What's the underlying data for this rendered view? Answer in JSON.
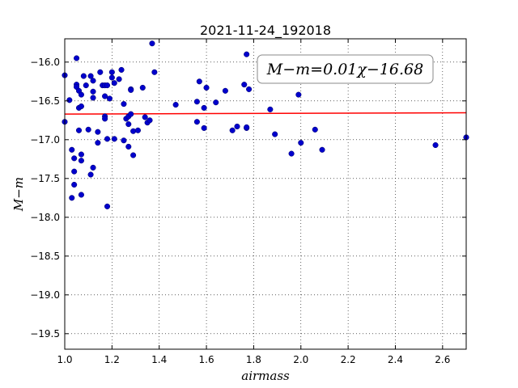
{
  "chart_data": {
    "type": "scatter",
    "title": "2021-11-24_192018",
    "xlabel": "airmass",
    "ylabel": "M−m",
    "xlim": [
      1.0,
      2.7
    ],
    "ylim": [
      -19.7,
      -15.7
    ],
    "y_inverted": true,
    "grid": true,
    "grid_style": "dotted",
    "xticks": [
      1.0,
      1.2,
      1.4,
      1.6,
      1.8,
      2.0,
      2.2,
      2.4,
      2.6
    ],
    "xtick_labels": [
      "1.0",
      "1.2",
      "1.4",
      "1.6",
      "1.8",
      "2.0",
      "2.2",
      "2.4",
      "2.6"
    ],
    "yticks": [
      -16.0,
      -16.5,
      -17.0,
      -17.5,
      -18.0,
      -18.5,
      -19.0,
      -19.5
    ],
    "ytick_labels": [
      "−16.0",
      "−16.5",
      "−17.0",
      "−17.5",
      "−18.0",
      "−18.5",
      "−19.0",
      "−19.5"
    ],
    "annotation": {
      "text": "M−m=0.01χ−16.68",
      "placement": "top-right"
    },
    "fit": {
      "slope": 0.01,
      "intercept": -16.68,
      "color": "#ff0000"
    },
    "point_color": "#0000cc",
    "points": [
      [
        1.0,
        -16.17
      ],
      [
        1.0,
        -16.77
      ],
      [
        1.02,
        -16.49
      ],
      [
        1.03,
        -17.13
      ],
      [
        1.03,
        -17.75
      ],
      [
        1.04,
        -17.24
      ],
      [
        1.04,
        -17.41
      ],
      [
        1.04,
        -17.58
      ],
      [
        1.05,
        -15.95
      ],
      [
        1.05,
        -16.29
      ],
      [
        1.05,
        -16.32
      ],
      [
        1.06,
        -16.88
      ],
      [
        1.06,
        -16.59
      ],
      [
        1.06,
        -16.37
      ],
      [
        1.07,
        -16.57
      ],
      [
        1.07,
        -16.42
      ],
      [
        1.07,
        -17.27
      ],
      [
        1.07,
        -17.19
      ],
      [
        1.07,
        -17.71
      ],
      [
        1.08,
        -16.18
      ],
      [
        1.09,
        -16.3
      ],
      [
        1.1,
        -16.87
      ],
      [
        1.11,
        -17.45
      ],
      [
        1.11,
        -16.18
      ],
      [
        1.12,
        -16.46
      ],
      [
        1.12,
        -16.24
      ],
      [
        1.12,
        -16.38
      ],
      [
        1.12,
        -17.36
      ],
      [
        1.14,
        -16.9
      ],
      [
        1.14,
        -17.04
      ],
      [
        1.15,
        -16.13
      ],
      [
        1.16,
        -16.3
      ],
      [
        1.17,
        -16.7
      ],
      [
        1.17,
        -16.73
      ],
      [
        1.17,
        -16.3
      ],
      [
        1.17,
        -16.44
      ],
      [
        1.18,
        -16.99
      ],
      [
        1.18,
        -16.3
      ],
      [
        1.18,
        -17.86
      ],
      [
        1.19,
        -16.47
      ],
      [
        1.2,
        -16.13
      ],
      [
        1.2,
        -16.2
      ],
      [
        1.21,
        -16.99
      ],
      [
        1.21,
        -16.27
      ],
      [
        1.23,
        -16.22
      ],
      [
        1.24,
        -16.1
      ],
      [
        1.25,
        -17.01
      ],
      [
        1.25,
        -16.54
      ],
      [
        1.26,
        -16.73
      ],
      [
        1.27,
        -16.7
      ],
      [
        1.27,
        -16.8
      ],
      [
        1.27,
        -17.09
      ],
      [
        1.28,
        -16.35
      ],
      [
        1.28,
        -16.36
      ],
      [
        1.28,
        -16.67
      ],
      [
        1.29,
        -16.89
      ],
      [
        1.29,
        -17.2
      ],
      [
        1.31,
        -16.88
      ],
      [
        1.33,
        -16.33
      ],
      [
        1.34,
        -16.71
      ],
      [
        1.35,
        -16.78
      ],
      [
        1.36,
        -16.75
      ],
      [
        1.37,
        -15.76
      ],
      [
        1.38,
        -16.13
      ],
      [
        1.47,
        -16.55
      ],
      [
        1.56,
        -16.77
      ],
      [
        1.56,
        -16.51
      ],
      [
        1.57,
        -16.25
      ],
      [
        1.59,
        -16.59
      ],
      [
        1.59,
        -16.85
      ],
      [
        1.6,
        -16.33
      ],
      [
        1.64,
        -16.52
      ],
      [
        1.68,
        -16.37
      ],
      [
        1.71,
        -16.88
      ],
      [
        1.73,
        -16.83
      ],
      [
        1.76,
        -16.29
      ],
      [
        1.77,
        -16.85
      ],
      [
        1.77,
        -16.84
      ],
      [
        1.77,
        -15.9
      ],
      [
        1.78,
        -16.35
      ],
      [
        1.87,
        -16.61
      ],
      [
        1.89,
        -16.93
      ],
      [
        1.96,
        -17.18
      ],
      [
        1.99,
        -16.42
      ],
      [
        2.0,
        -17.04
      ],
      [
        2.06,
        -16.87
      ],
      [
        2.09,
        -17.13
      ],
      [
        2.57,
        -17.07
      ],
      [
        2.7,
        -16.97
      ]
    ]
  }
}
